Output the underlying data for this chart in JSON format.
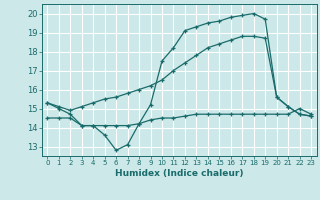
{
  "xlabel": "Humidex (Indice chaleur)",
  "bg_color": "#cce8e8",
  "grid_color": "#ffffff",
  "line_color": "#1a6b6b",
  "xlim": [
    -0.5,
    23.5
  ],
  "ylim": [
    12.5,
    20.5
  ],
  "yticks": [
    13,
    14,
    15,
    16,
    17,
    18,
    19,
    20
  ],
  "xticks": [
    0,
    1,
    2,
    3,
    4,
    5,
    6,
    7,
    8,
    9,
    10,
    11,
    12,
    13,
    14,
    15,
    16,
    17,
    18,
    19,
    20,
    21,
    22,
    23
  ],
  "series1_x": [
    0,
    1,
    2,
    3,
    4,
    5,
    6,
    7,
    8,
    9,
    10,
    11,
    12,
    13,
    14,
    15,
    16,
    17,
    18,
    19,
    20,
    21,
    22,
    23
  ],
  "series1_y": [
    15.3,
    15.0,
    14.7,
    14.1,
    14.1,
    13.6,
    12.8,
    13.1,
    14.2,
    15.2,
    17.5,
    18.2,
    19.1,
    19.3,
    19.5,
    19.6,
    19.8,
    19.9,
    20.0,
    19.7,
    15.6,
    15.1,
    14.7,
    14.6
  ],
  "series2_x": [
    0,
    1,
    2,
    3,
    4,
    5,
    6,
    7,
    8,
    9,
    10,
    11,
    12,
    13,
    14,
    15,
    16,
    17,
    18,
    19,
    20,
    21,
    22,
    23
  ],
  "series2_y": [
    15.3,
    15.1,
    14.9,
    15.1,
    15.3,
    15.5,
    15.6,
    15.8,
    16.0,
    16.2,
    16.5,
    17.0,
    17.4,
    17.8,
    18.2,
    18.4,
    18.6,
    18.8,
    18.8,
    18.7,
    15.6,
    15.1,
    14.7,
    14.6
  ],
  "series3_x": [
    0,
    1,
    2,
    3,
    4,
    5,
    6,
    7,
    8,
    9,
    10,
    11,
    12,
    13,
    14,
    15,
    16,
    17,
    18,
    19,
    20,
    21,
    22,
    23
  ],
  "series3_y": [
    14.5,
    14.5,
    14.5,
    14.1,
    14.1,
    14.1,
    14.1,
    14.1,
    14.2,
    14.4,
    14.5,
    14.5,
    14.6,
    14.7,
    14.7,
    14.7,
    14.7,
    14.7,
    14.7,
    14.7,
    14.7,
    14.7,
    15.0,
    14.7
  ]
}
